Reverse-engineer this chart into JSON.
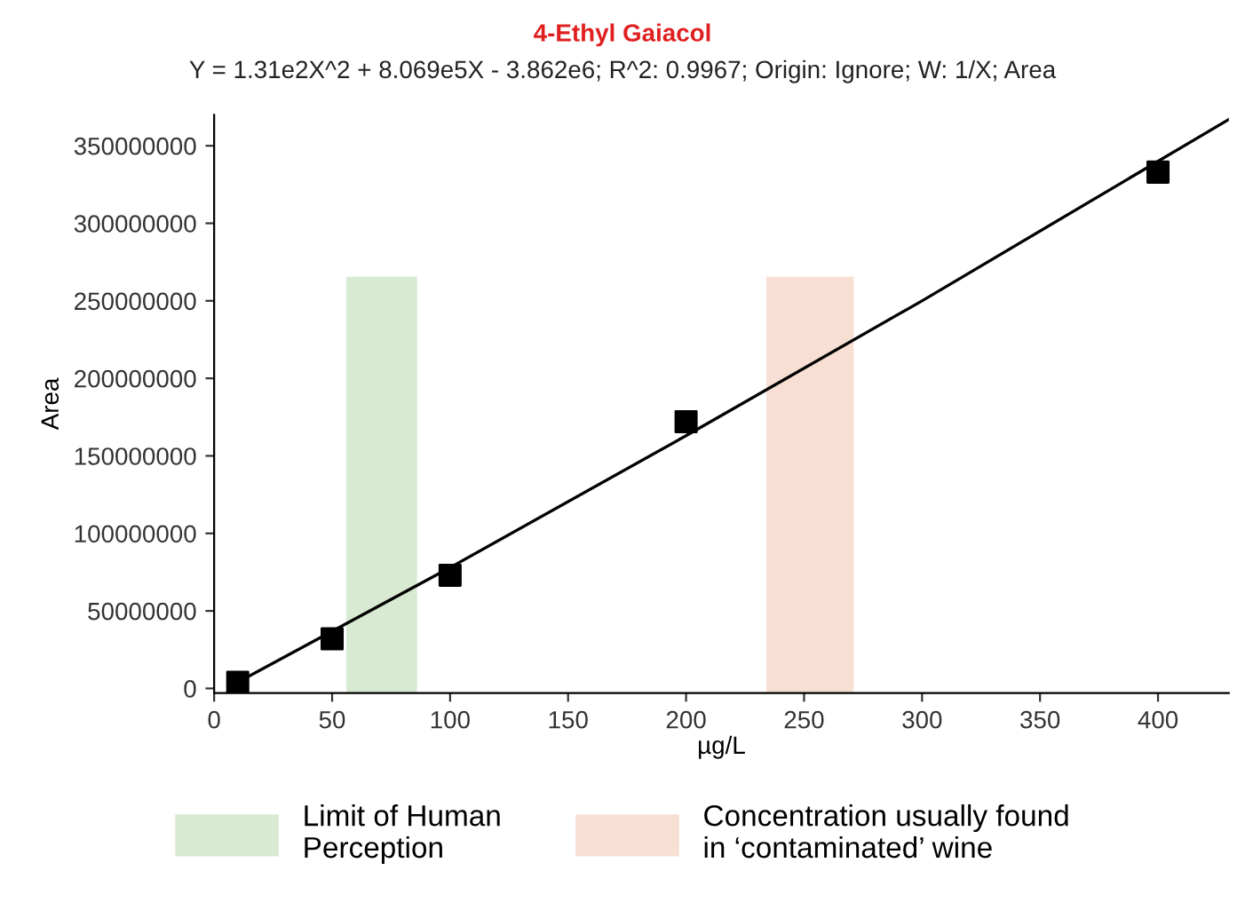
{
  "chart_data": {
    "type": "scatter",
    "title": "4-Ethyl Gaiacol",
    "subtitle": "Y = 1.31e2X^2 + 8.069e5X - 3.862e6; R^2: 0.9967; Origin: Ignore; W: 1/X; Area",
    "xlabel": "µg/L",
    "ylabel": "Area",
    "series": [
      {
        "color": "#000000",
        "marker": "square",
        "x": [
          10,
          50,
          100,
          200,
          400
        ],
        "values": [
          4000000,
          32000000,
          73000000,
          172000000,
          333000000
        ]
      },
      {
        "type": "line",
        "color": "#000000",
        "marker": "none",
        "line_style": "solid",
        "x": [
          10,
          100,
          200,
          300,
          430
        ],
        "values": [
          4000000,
          78000000,
          163000000,
          250000000,
          367000000
        ]
      }
    ],
    "bands": [
      {
        "axis": "x",
        "from": 56,
        "to": 86,
        "label": "Limit of Human\nPerception",
        "color": "#d9ead3"
      },
      {
        "axis": "x",
        "from": 234,
        "to": 271,
        "label": "Concentration usually found\nin ‘contaminated’ wine",
        "color": "#f7e0d3"
      }
    ],
    "xlim": [
      0,
      430
    ],
    "ylim": [
      -3000000,
      370000000
    ],
    "xticks": [
      0,
      50,
      100,
      150,
      200,
      250,
      300,
      350,
      400
    ],
    "yticks": [
      0,
      50000000,
      100000000,
      150000000,
      200000000,
      250000000,
      300000000,
      350000000
    ],
    "grid": false,
    "legend": "bottom"
  }
}
